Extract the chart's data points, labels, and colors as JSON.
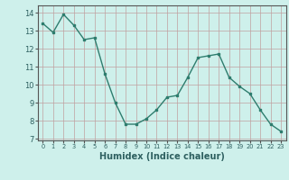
{
  "x": [
    0,
    1,
    2,
    3,
    4,
    5,
    6,
    7,
    8,
    9,
    10,
    11,
    12,
    13,
    14,
    15,
    16,
    17,
    18,
    19,
    20,
    21,
    22,
    23
  ],
  "y": [
    13.4,
    12.9,
    13.9,
    13.3,
    12.5,
    12.6,
    10.6,
    9.0,
    7.8,
    7.8,
    8.1,
    8.6,
    9.3,
    9.4,
    10.4,
    11.5,
    11.6,
    11.7,
    10.4,
    9.9,
    9.5,
    8.6,
    7.8,
    7.4
  ],
  "line_color": "#2e7d6e",
  "bg_color": "#cef0eb",
  "grid_color": "#c0a0a0",
  "xlabel": "Humidex (Indice chaleur)",
  "xlabel_fontsize": 7,
  "ylabel_ticks": [
    7,
    8,
    9,
    10,
    11,
    12,
    13,
    14
  ],
  "xtick_labels": [
    "0",
    "1",
    "2",
    "3",
    "4",
    "5",
    "6",
    "7",
    "8",
    "9",
    "10",
    "11",
    "12",
    "13",
    "14",
    "15",
    "16",
    "17",
    "18",
    "19",
    "20",
    "21",
    "22",
    "23"
  ],
  "ylim": [
    6.9,
    14.4
  ],
  "xlim": [
    -0.5,
    23.5
  ]
}
